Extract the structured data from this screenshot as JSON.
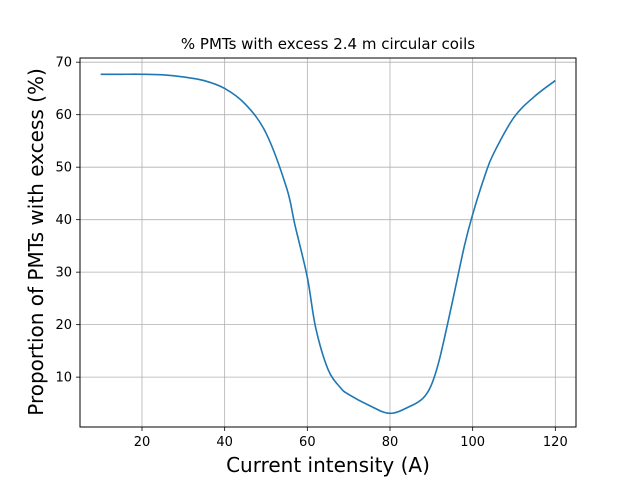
{
  "chart_data": {
    "type": "line",
    "title": "% PMTs with excess 2.4 m circular coils",
    "xlabel": "Current intensity (A)",
    "ylabel": "Proportion of PMTs with excess (%)",
    "xlim": [
      5,
      125
    ],
    "ylim": [
      0.5,
      70.8
    ],
    "xticks": [
      20,
      40,
      60,
      80,
      100,
      120
    ],
    "yticks": [
      10,
      20,
      30,
      40,
      50,
      60,
      70
    ],
    "grid": true,
    "series_color": "#1f77b4",
    "series": [
      {
        "x": [
          10,
          15,
          20,
          25,
          30,
          35,
          40,
          45,
          50,
          55,
          57,
          60,
          62,
          65,
          68,
          70,
          75,
          80,
          85,
          88,
          90,
          92,
          95,
          98,
          100,
          103,
          105,
          110,
          115,
          120
        ],
        "y": [
          67.7,
          67.7,
          67.7,
          67.6,
          67.2,
          66.5,
          65.0,
          62.0,
          56.5,
          46.0,
          39.0,
          29.0,
          19.5,
          11.5,
          8.0,
          6.7,
          4.6,
          3.1,
          4.5,
          6.0,
          8.5,
          13.5,
          24.0,
          35.0,
          41.0,
          48.5,
          52.5,
          59.5,
          63.5,
          66.5
        ]
      }
    ]
  }
}
